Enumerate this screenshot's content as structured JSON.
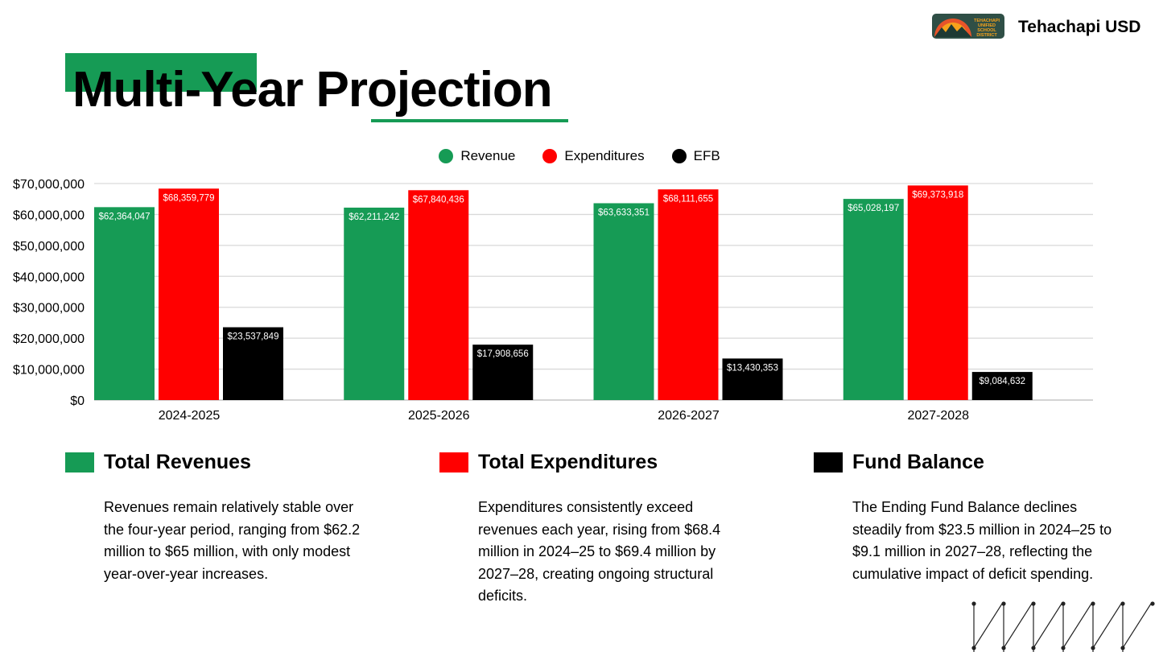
{
  "header": {
    "title": "Multi-Year Projection",
    "brand": "Tehachapi USD",
    "logo_text": "TEHACHAPI UNIFIED SCHOOL DISTRICT"
  },
  "colors": {
    "revenue": "#169b55",
    "expenditures": "#ff0000",
    "efb": "#000000",
    "accent": "#169b55"
  },
  "chart_data": {
    "type": "bar",
    "categories": [
      "2024-2025",
      "2025-2026",
      "2026-2027",
      "2027-2028"
    ],
    "series": [
      {
        "name": "Revenue",
        "values": [
          62364047,
          62211242,
          63633351,
          65028197
        ],
        "labels": [
          "$62,364,047",
          "$62,211,242",
          "$63,633,351",
          "$65,028,197"
        ]
      },
      {
        "name": "Expenditures",
        "values": [
          68359779,
          67840436,
          68111655,
          69373918
        ],
        "labels": [
          "$68,359,779",
          "$67,840,436",
          "$68,111,655",
          "$69,373,918"
        ]
      },
      {
        "name": "EFB",
        "values": [
          23537849,
          17908656,
          13430353,
          9084632
        ],
        "labels": [
          "$23,537,849",
          "$17,908,656",
          "$13,430,353",
          "$9,084,632"
        ]
      }
    ],
    "yticks": [
      "$0",
      "$10,000,000",
      "$20,000,000",
      "$30,000,000",
      "$40,000,000",
      "$50,000,000",
      "$60,000,000",
      "$70,000,000"
    ],
    "ylim": [
      0,
      70000000
    ],
    "grid": true,
    "legend_position": "top-center"
  },
  "sections": [
    {
      "title": "Total Revenues",
      "body": "Revenues remain relatively stable over the four-year period, ranging from $62.2 million to $65 million, with only modest year-over-year increases."
    },
    {
      "title": "Total Expenditures",
      "body": "Expenditures consistently exceed revenues each year, rising from $68.4 million in 2024–25 to $69.4 million by 2027–28, creating ongoing structural deficits."
    },
    {
      "title": "Fund Balance",
      "body": "The Ending Fund Balance declines steadily from $23.5 million in 2024–25 to $9.1 million in 2027–28, reflecting the cumulative impact of deficit spending."
    }
  ]
}
